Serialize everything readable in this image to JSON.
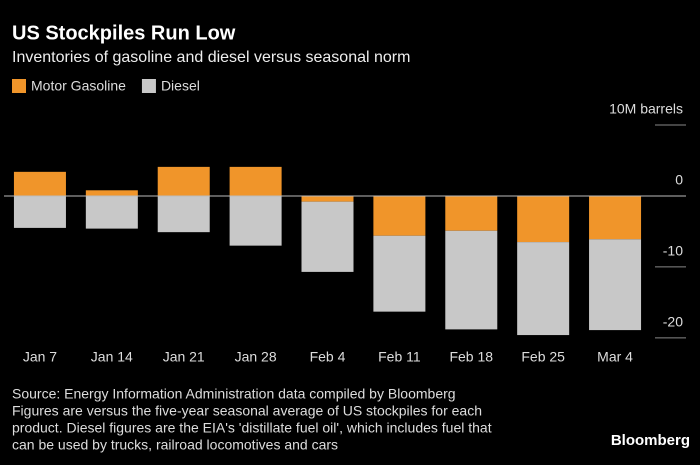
{
  "chart_data": {
    "type": "stacked-bar",
    "title": "US Stockpiles Run Low",
    "subtitle": "Inventories of gasoline and diesel versus seasonal norm",
    "categories": [
      "Jan 7",
      "Jan 14",
      "Jan 21",
      "Jan 28",
      "Feb 4",
      "Feb 11",
      "Feb 18",
      "Feb 25",
      "Mar 4"
    ],
    "series": [
      {
        "name": "Motor Gasoline",
        "color": "#f0952a",
        "values": [
          3.4,
          0.8,
          4.1,
          4.1,
          -0.8,
          -5.6,
          -4.9,
          -6.5,
          -6.1
        ]
      },
      {
        "name": "Diesel",
        "color": "#c8c8c8",
        "values": [
          -4.5,
          -4.6,
          -5.1,
          -7.0,
          -9.9,
          -10.7,
          -13.9,
          -13.1,
          -12.8
        ]
      }
    ],
    "ylim": [
      -21,
      10
    ],
    "yticks": [
      {
        "value": 10,
        "label": "10M barrels"
      },
      0,
      -10,
      -20
    ],
    "footnotes": [
      "Source: Energy Information Administration data compiled by Bloomberg",
      "Figures are versus the five-year seasonal average of US stockpiles for each",
      "product. Diesel figures are the EIA's 'distillate fuel oil', which includes fuel that",
      "can be used by trucks, railroad locomotives and cars"
    ],
    "brand": "Bloomberg"
  }
}
